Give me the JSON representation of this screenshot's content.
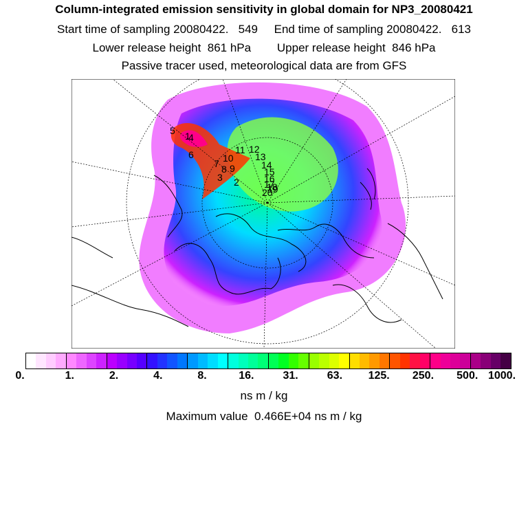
{
  "header": {
    "title": "Column-integrated emission sensitivity in global domain for NP3_20080421",
    "sampling": "Start time of sampling 20080422.   549     End time of sampling 20080422.   613",
    "release": "Lower release height  861 hPa        Upper release height  846 hPa",
    "tracer": "Passive tracer used, meteorological data are from GFS"
  },
  "map": {
    "projection": "polar-stereographic-north",
    "labels": [
      "5",
      "4",
      "6",
      "10",
      "11",
      "12",
      "13",
      "7",
      "8",
      "9",
      "3",
      "2",
      "14",
      "15",
      "16",
      "17",
      "18",
      "19",
      "20",
      "1"
    ],
    "colors": {
      "land_outline": "#000000",
      "low": "#ff99ff",
      "mid": "#00ff66",
      "high": "#ff0000"
    }
  },
  "colorbar": {
    "tick_labels": [
      "0.",
      "1.",
      "2.",
      "4.",
      "8.",
      "16.",
      "31.",
      "63.",
      "125.",
      "250.",
      "500.",
      "1000."
    ],
    "unit": "ns m / kg",
    "colors": [
      "#ffffff",
      "#ffe6ff",
      "#ffccff",
      "#ffaaff",
      "#ff88ff",
      "#ee66ff",
      "#dd44ff",
      "#cc22ff",
      "#bb00ff",
      "#9900ff",
      "#7700ff",
      "#5500ff",
      "#3311ff",
      "#2233ff",
      "#1155ff",
      "#0077ff",
      "#0099ff",
      "#00bbff",
      "#00ddff",
      "#00ffff",
      "#00ffdd",
      "#00ffbb",
      "#00ff99",
      "#00ff77",
      "#00ff55",
      "#00ff22",
      "#33ff00",
      "#66ff00",
      "#99ff00",
      "#bbff00",
      "#ddff00",
      "#ffff00",
      "#ffdd00",
      "#ffbb00",
      "#ff9900",
      "#ff7700",
      "#ff5500",
      "#ff3300",
      "#ff1144",
      "#ff0066",
      "#ff0088",
      "#ee0099",
      "#dd0099",
      "#cc0099",
      "#aa0088",
      "#880077",
      "#660066",
      "#440044"
    ]
  },
  "footer": {
    "max_value": "Maximum value  0.466E+04 ns m / kg"
  }
}
